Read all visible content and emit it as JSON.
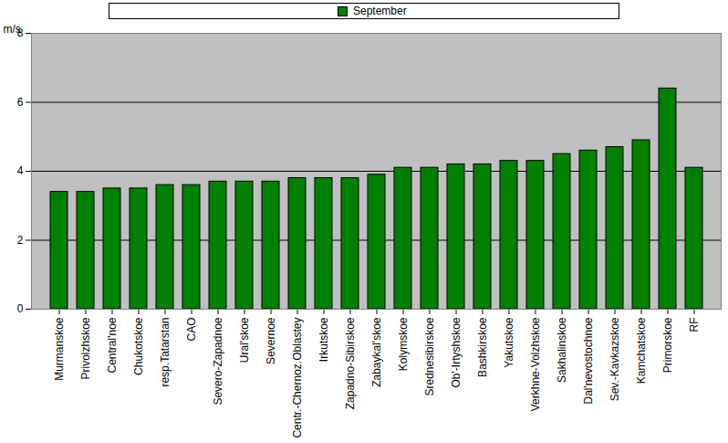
{
  "chart_data": {
    "type": "bar",
    "categories": [
      "Murmanskoe",
      "Privolzhskoe",
      "Central'noe",
      "Chukotskoe",
      "resp.Tatarstan",
      "CAO",
      "Severo-Zapadnoe",
      "Ural'skoe",
      "Severnoe",
      "Centr.-Chernoz.Oblastey",
      "Irkutskoe",
      "Zapadno-Sibirskoe",
      "Zabaykal'skoe",
      "Kolymskoe",
      "Srednesibirskoe",
      "Ob'-Irtyshskoe",
      "Bashkirskoe",
      "Yakutskoe",
      "Verkhne-Volzhskoe",
      "Sakhalinskoe",
      "Dal'nevostochnoe",
      "Sev.-Kavkazskoe",
      "Kamchatskoe",
      "Primorskoe",
      "RF"
    ],
    "series": [
      {
        "name": "September",
        "color": "#008000",
        "values": [
          3.4,
          3.4,
          3.5,
          3.5,
          3.6,
          3.6,
          3.7,
          3.7,
          3.7,
          3.8,
          3.8,
          3.8,
          3.9,
          4.1,
          4.1,
          4.2,
          4.2,
          4.3,
          4.3,
          4.5,
          4.6,
          4.7,
          4.9,
          6.4,
          4.1
        ]
      }
    ],
    "y_label": "m/s",
    "ylim": [
      0,
      8
    ],
    "yticks": [
      0,
      2,
      4,
      6,
      8
    ],
    "grid": true,
    "legend": "top"
  }
}
